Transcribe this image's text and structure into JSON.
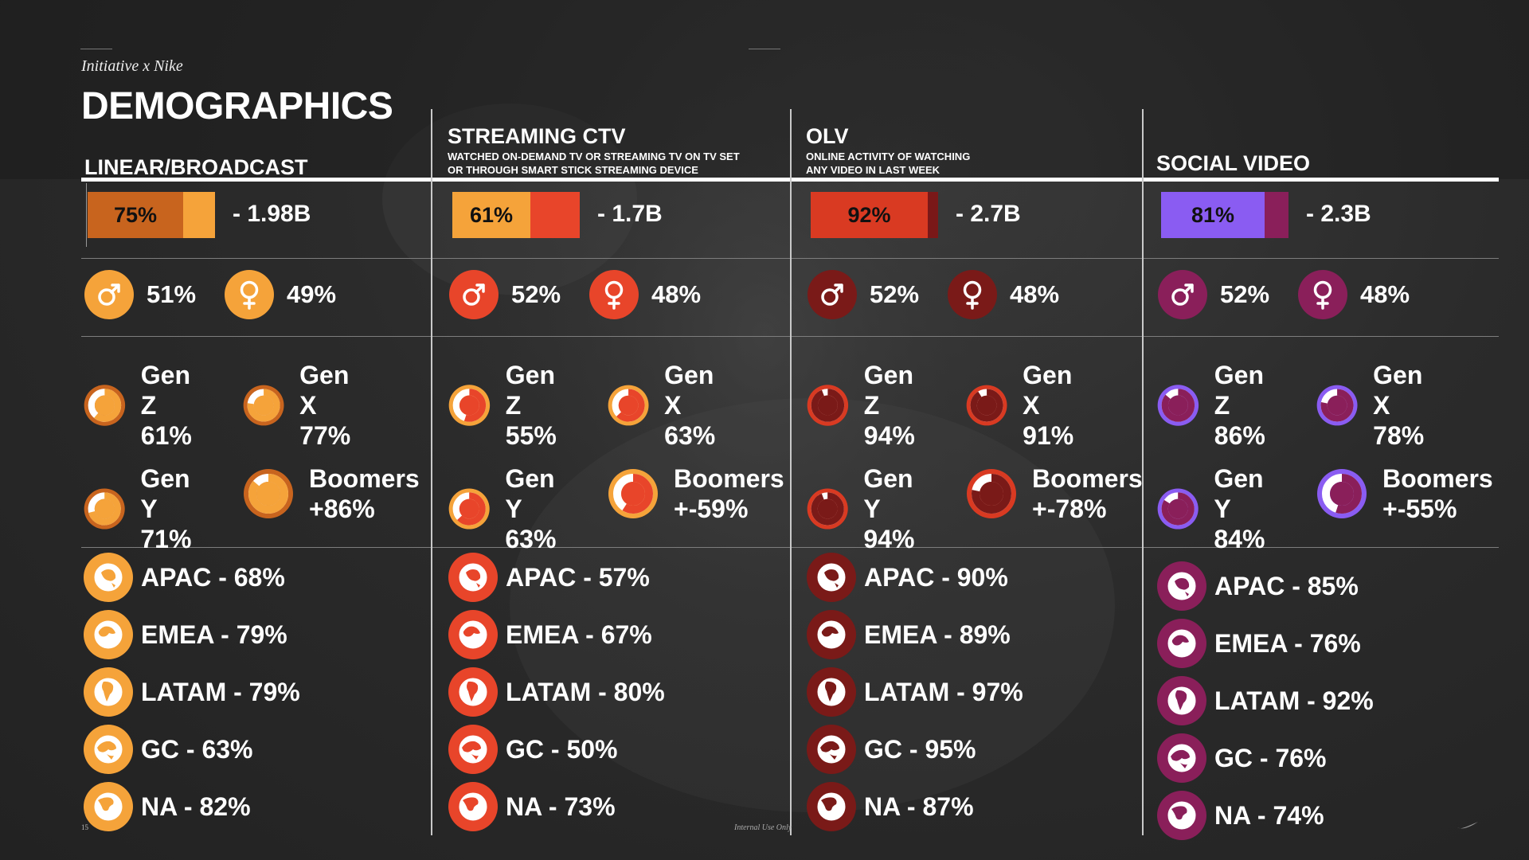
{
  "brand": "Initiative x Nike",
  "title": "DEMOGRAPHICS",
  "footer": {
    "page_number": "15",
    "note": "Internal Use Only"
  },
  "columns": [
    {
      "title": "LINEAR/BROADCAST",
      "subtitle": "",
      "colors": {
        "fill": "#c8641e",
        "rest": "#f5a33a",
        "icon": "#f5a33a",
        "icon_dark": "#f0a035",
        "ring_bg": "#c8641e",
        "ring_fg": "#f5a33a",
        "ring_center": "#ffffff"
      },
      "reach": {
        "pct_label": "75%",
        "pct": 0.75,
        "total": "- 1.98B"
      },
      "gender": {
        "male": "51%",
        "female": "49%"
      },
      "generations": [
        {
          "name": "Gen Z",
          "value": "61%",
          "pct": 0.61
        },
        {
          "name": "Gen X",
          "value": "77%",
          "pct": 0.77
        },
        {
          "name": "Gen Y",
          "value": "71%",
          "pct": 0.71
        },
        {
          "name": "Boomers",
          "value": "+86%",
          "pct": 0.86
        }
      ],
      "regions": [
        {
          "label": "APAC - 68%",
          "icon": "asia-globe-icon"
        },
        {
          "label": "EMEA - 79%",
          "icon": "europe-globe-icon"
        },
        {
          "label": "LATAM - 79%",
          "icon": "south-america-globe-icon"
        },
        {
          "label": "GC - 63%",
          "icon": "china-globe-icon"
        },
        {
          "label": "NA - 82%",
          "icon": "north-america-globe-icon"
        }
      ]
    },
    {
      "title": "STREAMING CTV",
      "subtitle": "WATCHED ON-DEMAND TV OR STREAMING TV ON TV SET OR THROUGH SMART STICK STREAMING DEVICE",
      "colors": {
        "fill": "#f5a33a",
        "rest": "#e8452a",
        "icon": "#e8452a",
        "icon_dark": "#e8452a",
        "ring_bg": "#f5a33a",
        "ring_fg": "#e8452a",
        "ring_center": "#ffffff"
      },
      "reach": {
        "pct_label": "61%",
        "pct": 0.61,
        "total": "- 1.7B"
      },
      "gender": {
        "male": "52%",
        "female": "48%"
      },
      "generations": [
        {
          "name": "Gen Z",
          "value": "55%",
          "pct": 0.55
        },
        {
          "name": "Gen X",
          "value": "63%",
          "pct": 0.63
        },
        {
          "name": "Gen Y",
          "value": "63%",
          "pct": 0.63
        },
        {
          "name": "Boomers",
          "value": "+-59%",
          "pct": 0.59
        }
      ],
      "regions": [
        {
          "label": "APAC - 57%",
          "icon": "asia-globe-icon"
        },
        {
          "label": "EMEA - 67%",
          "icon": "europe-globe-icon"
        },
        {
          "label": "LATAM - 80%",
          "icon": "south-america-globe-icon"
        },
        {
          "label": "GC - 50%",
          "icon": "china-globe-icon"
        },
        {
          "label": "NA - 73%",
          "icon": "north-america-globe-icon"
        }
      ]
    },
    {
      "title": "OLV",
      "subtitle": "ONLINE ACTIVITY OF WATCHING ANY VIDEO IN LAST WEEK",
      "colors": {
        "fill": "#d93a22",
        "rest": "#7a1818",
        "icon": "#7a1a18",
        "icon_dark": "#7a1a18",
        "ring_bg": "#d93a22",
        "ring_fg": "#7a1a18",
        "ring_center": "#ffffff"
      },
      "reach": {
        "pct_label": "92%",
        "pct": 0.92,
        "total": "- 2.7B"
      },
      "gender": {
        "male": "52%",
        "female": "48%"
      },
      "generations": [
        {
          "name": "Gen Z",
          "value": "94%",
          "pct": 0.94
        },
        {
          "name": "Gen X",
          "value": "91%",
          "pct": 0.91
        },
        {
          "name": "Gen Y",
          "value": "94%",
          "pct": 0.94
        },
        {
          "name": "Boomers",
          "value": "+-78%",
          "pct": 0.78
        }
      ],
      "regions": [
        {
          "label": "APAC - 90%",
          "icon": "asia-globe-icon"
        },
        {
          "label": "EMEA - 89%",
          "icon": "europe-globe-icon"
        },
        {
          "label": "LATAM - 97%",
          "icon": "south-america-globe-icon"
        },
        {
          "label": "GC - 95%",
          "icon": "china-globe-icon"
        },
        {
          "label": "NA - 87%",
          "icon": "north-america-globe-icon"
        }
      ]
    },
    {
      "title": "SOCIAL VIDEO",
      "subtitle": "",
      "colors": {
        "fill": "#8a5cf2",
        "rest": "#8a1f5a",
        "icon": "#8a1f5a",
        "icon_dark": "#8a1f5a",
        "ring_bg": "#8a5cf2",
        "ring_fg": "#8a1f5a",
        "ring_center": "#ffffff"
      },
      "reach": {
        "pct_label": "81%",
        "pct": 0.81,
        "total": "- 2.3B"
      },
      "gender": {
        "male": "52%",
        "female": "48%"
      },
      "generations": [
        {
          "name": "Gen Z",
          "value": "86%",
          "pct": 0.86
        },
        {
          "name": "Gen X",
          "value": "78%",
          "pct": 0.78
        },
        {
          "name": "Gen Y",
          "value": "84%",
          "pct": 0.84
        },
        {
          "name": "Boomers",
          "value": "+-55%",
          "pct": 0.55
        }
      ],
      "regions": [
        {
          "label": "APAC - 85%",
          "icon": "asia-globe-icon"
        },
        {
          "label": "EMEA - 76%",
          "icon": "europe-globe-icon"
        },
        {
          "label": "LATAM - 92%",
          "icon": "south-america-globe-icon"
        },
        {
          "label": "GC - 76%",
          "icon": "china-globe-icon"
        },
        {
          "label": "NA - 74%",
          "icon": "north-america-globe-icon"
        }
      ]
    }
  ]
}
